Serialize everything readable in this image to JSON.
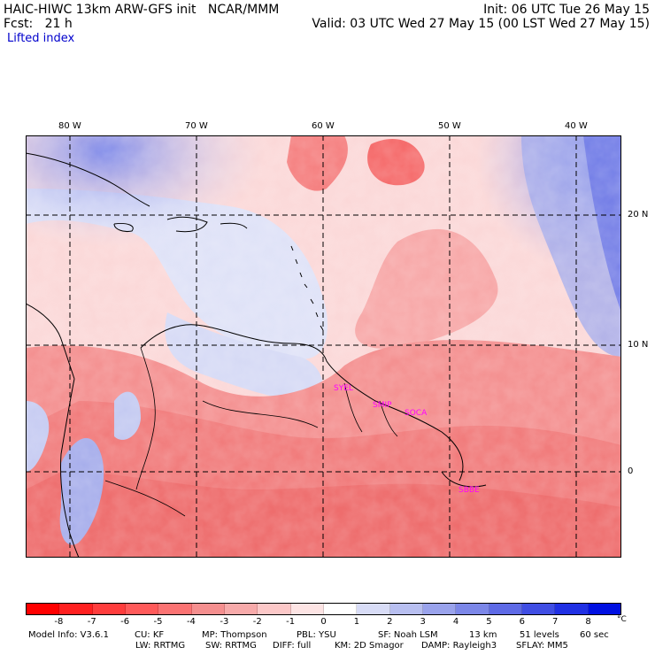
{
  "header": {
    "title": "HAIC-HIWC 13km ARW-GFS init   NCAR/MMM",
    "init": "Init: 06 UTC Tue 26 May 15",
    "fcst": "Fcst:   21 h",
    "valid": "Valid: 03 UTC Wed 27 May 15 (00 LST Wed 27 May 15)",
    "field": "Lifted index"
  },
  "map": {
    "longitude_labels": [
      "80 W",
      "70 W",
      "60 W",
      "50 W",
      "40 W"
    ],
    "latitude_labels": [
      "20 N",
      "10 N",
      "0"
    ],
    "station_labels": [
      "SYEL",
      "SMIP",
      "SOCA",
      "SBBE"
    ],
    "colors": {
      "coast": "#000000",
      "grid": "#000000",
      "station_label": "#ff00ff"
    }
  },
  "colorbar": {
    "unit": "°C",
    "ticks": [
      "-8",
      "-7",
      "-6",
      "-5",
      "-4",
      "-3",
      "-2",
      "-1",
      "0",
      "1",
      "2",
      "3",
      "4",
      "5",
      "6",
      "7",
      "8"
    ],
    "colors": [
      "#ff0000",
      "#ff2020",
      "#ff3d3d",
      "#ff5a5a",
      "#fb7373",
      "#f58f8f",
      "#f7aaaa",
      "#fcc8c8",
      "#fde4e4",
      "#ffffff",
      "#d8dcf6",
      "#b8bff0",
      "#9aa3ec",
      "#7c87e8",
      "#5e6ae6",
      "#404ee4",
      "#2030e4",
      "#0010e2"
    ]
  },
  "footer": {
    "line1": [
      "Model Info: V3.6.1",
      "CU: KF",
      "MP: Thompson",
      "PBL: YSU",
      "SF: Noah LSM",
      "13 km",
      "51 levels",
      "60 sec"
    ],
    "line2": [
      "LW: RRTMG",
      "SW: RRTMG",
      "DIFF: full",
      "KM: 2D Smagor",
      "DAMP: Rayleigh3",
      "SFLAY: MM5"
    ]
  }
}
